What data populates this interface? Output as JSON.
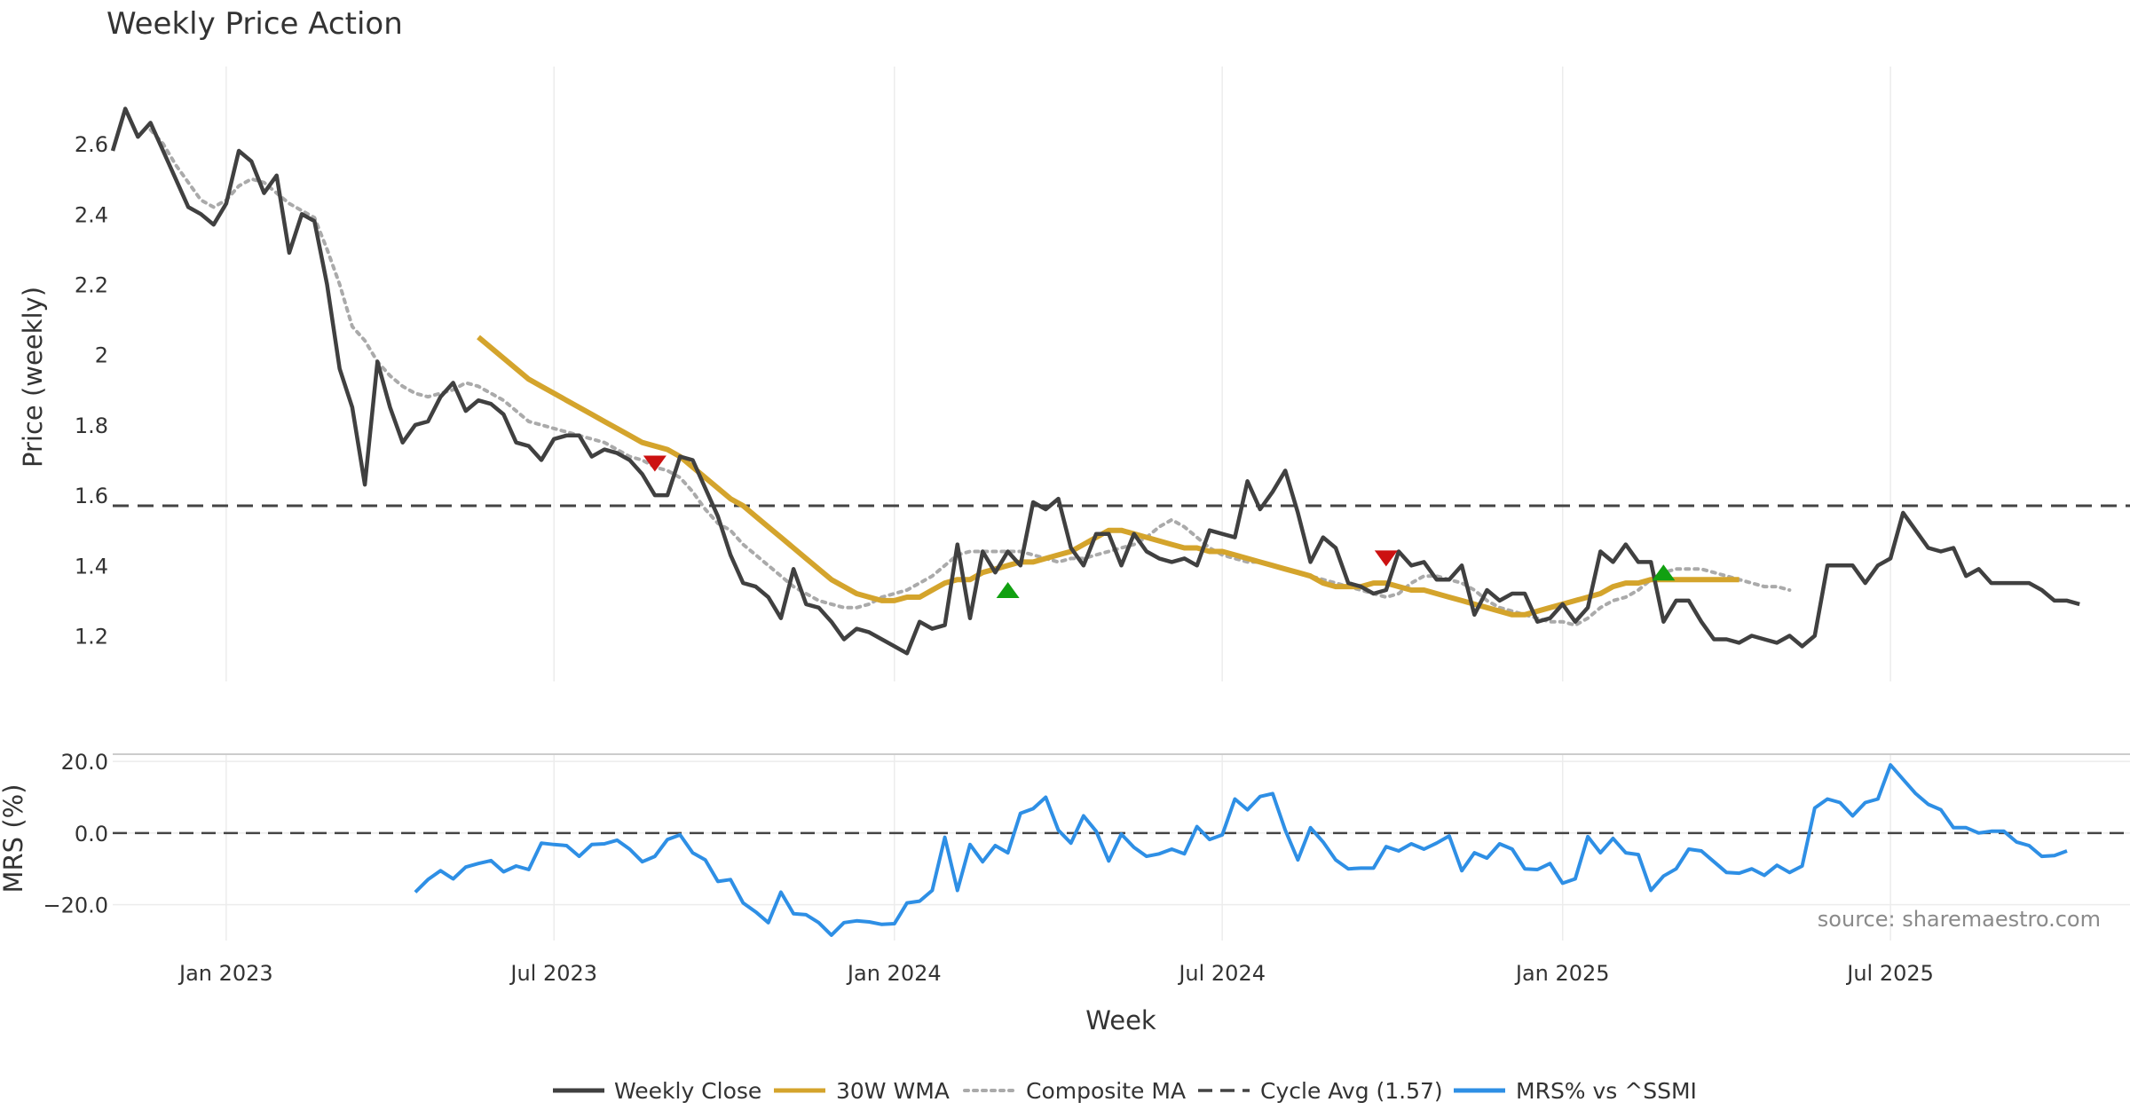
{
  "chart_data": {
    "type": "line",
    "title": "Weekly Price Action",
    "xlabel": "Week",
    "x_tick_labels": [
      "Jan 2023",
      "Jul 2023",
      "Jan 2024",
      "Jul 2024",
      "Jan 2025",
      "Jul 2025"
    ],
    "x_range_week_index": [
      0,
      160
    ],
    "x_tick_week_index": [
      9,
      35,
      62,
      88,
      115,
      141
    ],
    "price_panel": {
      "ylabel": "Price (weekly)",
      "ylim": [
        1.07,
        2.82
      ],
      "y_ticks": [
        1.2,
        1.4,
        1.6,
        1.8,
        2.0,
        2.2,
        2.4,
        2.6
      ],
      "y_tick_labels": [
        "1.2",
        "1.4",
        "1.6",
        "1.8",
        "2",
        "2.2",
        "2.4",
        "2.6"
      ]
    },
    "mrs_panel": {
      "ylabel": "MRS (%)",
      "ylim": [
        -30,
        22
      ],
      "y_ticks": [
        20,
        0,
        -20
      ],
      "y_tick_labels": [
        "20.0",
        "0.0",
        "−20.0"
      ]
    },
    "series": [
      {
        "name": "Weekly Close",
        "color": "#404040",
        "start_week": 0,
        "values": [
          2.58,
          2.7,
          2.62,
          2.66,
          2.58,
          2.5,
          2.42,
          2.4,
          2.37,
          2.43,
          2.58,
          2.55,
          2.46,
          2.51,
          2.29,
          2.4,
          2.38,
          2.2,
          1.96,
          1.85,
          1.63,
          1.98,
          1.85,
          1.75,
          1.8,
          1.81,
          1.88,
          1.92,
          1.84,
          1.87,
          1.86,
          1.83,
          1.75,
          1.74,
          1.7,
          1.76,
          1.77,
          1.77,
          1.71,
          1.73,
          1.72,
          1.7,
          1.66,
          1.6,
          1.6,
          1.71,
          1.7,
          1.62,
          1.54,
          1.43,
          1.35,
          1.34,
          1.31,
          1.25,
          1.39,
          1.29,
          1.28,
          1.24,
          1.19,
          1.22,
          1.21,
          1.19,
          1.17,
          1.15,
          1.24,
          1.22,
          1.23,
          1.46,
          1.25,
          1.44,
          1.38,
          1.44,
          1.4,
          1.58,
          1.56,
          1.59,
          1.45,
          1.4,
          1.49,
          1.49,
          1.4,
          1.49,
          1.44,
          1.42,
          1.41,
          1.42,
          1.4,
          1.5,
          1.49,
          1.48,
          1.64,
          1.56,
          1.61,
          1.67,
          1.55,
          1.41,
          1.48,
          1.45,
          1.35,
          1.34,
          1.32,
          1.33,
          1.44,
          1.4,
          1.41,
          1.36,
          1.36,
          1.4,
          1.26,
          1.33,
          1.3,
          1.32,
          1.32,
          1.24,
          1.25,
          1.29,
          1.24,
          1.28,
          1.44,
          1.41,
          1.46,
          1.41,
          1.41,
          1.24,
          1.3,
          1.3,
          1.24,
          1.19,
          1.19,
          1.18,
          1.2,
          1.19,
          1.18,
          1.2,
          1.17,
          1.2,
          1.4,
          1.4,
          1.4,
          1.35,
          1.4,
          1.42,
          1.55,
          1.5,
          1.45,
          1.44,
          1.45,
          1.37,
          1.39,
          1.35,
          1.35,
          1.35,
          1.35,
          1.33,
          1.3,
          1.3,
          1.29
        ]
      },
      {
        "name": "30W WMA",
        "color": "#D4A42C",
        "start_week": 29,
        "values": [
          2.05,
          2.02,
          1.99,
          1.96,
          1.93,
          1.91,
          1.89,
          1.87,
          1.85,
          1.83,
          1.81,
          1.79,
          1.77,
          1.75,
          1.74,
          1.73,
          1.71,
          1.68,
          1.65,
          1.62,
          1.59,
          1.57,
          1.54,
          1.51,
          1.48,
          1.45,
          1.42,
          1.39,
          1.36,
          1.34,
          1.32,
          1.31,
          1.3,
          1.3,
          1.31,
          1.31,
          1.33,
          1.35,
          1.36,
          1.36,
          1.38,
          1.39,
          1.4,
          1.41,
          1.41,
          1.42,
          1.43,
          1.44,
          1.46,
          1.48,
          1.5,
          1.5,
          1.49,
          1.48,
          1.47,
          1.46,
          1.45,
          1.45,
          1.44,
          1.44,
          1.43,
          1.42,
          1.41,
          1.4,
          1.39,
          1.38,
          1.37,
          1.35,
          1.34,
          1.34,
          1.34,
          1.35,
          1.35,
          1.34,
          1.33,
          1.33,
          1.32,
          1.31,
          1.3,
          1.29,
          1.28,
          1.27,
          1.26,
          1.26,
          1.27,
          1.28,
          1.29,
          1.3,
          1.31,
          1.32,
          1.34,
          1.35,
          1.35,
          1.36,
          1.36,
          1.36,
          1.36,
          1.36,
          1.36,
          1.36,
          1.36
        ]
      },
      {
        "name": "Composite MA",
        "color": "#AAAAAA",
        "start_week": 3,
        "values": [
          2.64,
          2.6,
          2.54,
          2.49,
          2.44,
          2.42,
          2.44,
          2.48,
          2.5,
          2.49,
          2.46,
          2.43,
          2.41,
          2.39,
          2.3,
          2.2,
          2.08,
          2.04,
          1.98,
          1.94,
          1.91,
          1.89,
          1.88,
          1.89,
          1.9,
          1.92,
          1.91,
          1.89,
          1.87,
          1.84,
          1.81,
          1.8,
          1.79,
          1.78,
          1.77,
          1.76,
          1.75,
          1.73,
          1.71,
          1.7,
          1.68,
          1.67,
          1.65,
          1.61,
          1.56,
          1.52,
          1.5,
          1.46,
          1.43,
          1.4,
          1.37,
          1.34,
          1.32,
          1.3,
          1.29,
          1.28,
          1.28,
          1.29,
          1.31,
          1.32,
          1.33,
          1.35,
          1.37,
          1.4,
          1.43,
          1.44,
          1.44,
          1.44,
          1.44,
          1.44,
          1.43,
          1.42,
          1.41,
          1.42,
          1.42,
          1.43,
          1.44,
          1.45,
          1.46,
          1.48,
          1.51,
          1.53,
          1.51,
          1.48,
          1.45,
          1.43,
          1.42,
          1.41,
          1.41,
          1.4,
          1.39,
          1.38,
          1.37,
          1.36,
          1.35,
          1.34,
          1.33,
          1.32,
          1.31,
          1.32,
          1.35,
          1.37,
          1.37,
          1.36,
          1.35,
          1.33,
          1.3,
          1.28,
          1.27,
          1.26,
          1.25,
          1.24,
          1.24,
          1.23,
          1.25,
          1.28,
          1.3,
          1.31,
          1.33,
          1.36,
          1.38,
          1.39,
          1.39,
          1.39,
          1.38,
          1.37,
          1.36,
          1.35,
          1.34,
          1.34,
          1.33
        ]
      },
      {
        "name": "MRS% vs ^SSMI",
        "color": "#2E8FE5",
        "start_week": 24,
        "values": [
          -16.5,
          -13,
          -10.5,
          -12.8,
          -9.5,
          -8.5,
          -7.7,
          -10.8,
          -9.2,
          -10.2,
          -2.8,
          -3.2,
          -3.5,
          -6.5,
          -3.2,
          -3.0,
          -2.0,
          -4.5,
          -8.0,
          -6.5,
          -1.8,
          -0.5,
          -5.5,
          -7.5,
          -13.5,
          -13.0,
          -19.5,
          -22.0,
          -25.0,
          -16.5,
          -22.5,
          -22.8,
          -25.0,
          -28.5,
          -25.0,
          -24.5,
          -24.8,
          -25.5,
          -25.3,
          -19.5,
          -19.0,
          -16.0,
          -1.2,
          -16.0,
          -3.2,
          -8.0,
          -3.5,
          -5.5,
          5.5,
          6.8,
          10.0,
          0.8,
          -2.8,
          4.8,
          0.5,
          -7.8,
          -0.3,
          -4.0,
          -6.5,
          -5.8,
          -4.5,
          -5.8,
          1.8,
          -1.8,
          -0.5,
          9.5,
          6.5,
          10.2,
          11.0,
          0.8,
          -7.5,
          1.5,
          -2.5,
          -7.5,
          -10.0,
          -9.8,
          -9.8,
          -3.8,
          -5.0,
          -3.0,
          -4.5,
          -2.8,
          -0.8,
          -10.5,
          -5.5,
          -7.0,
          -3.0,
          -4.5,
          -10.0,
          -10.2,
          -8.5,
          -14.0,
          -12.8,
          -1.0,
          -5.5,
          -1.5,
          -5.5,
          -6.0,
          -16.0,
          -12.0,
          -10.0,
          -4.5,
          -5.0,
          -8.0,
          -11.0,
          -11.2,
          -10.0,
          -11.8,
          -9.0,
          -11.0,
          -9.2,
          7.0,
          9.5,
          8.5,
          4.8,
          8.5,
          9.5,
          19.0,
          15.0,
          11.0,
          8.0,
          6.5,
          1.5,
          1.5,
          0.0,
          0.5,
          0.5,
          -2.5,
          -3.5,
          -6.5,
          -6.3,
          -5.0
        ]
      }
    ],
    "cycle_average": {
      "name": "Cycle Avg (1.57)",
      "value": 1.57,
      "color": "#444444"
    },
    "signals": [
      {
        "type": "sell",
        "week": 43,
        "price": 1.69,
        "color": "#CC1111"
      },
      {
        "type": "buy",
        "week": 71,
        "price": 1.33,
        "color": "#11A011"
      },
      {
        "type": "sell",
        "week": 101,
        "price": 1.42,
        "color": "#CC1111"
      },
      {
        "type": "buy",
        "week": 123,
        "price": 1.38,
        "color": "#11A011"
      }
    ],
    "legend": {
      "position": "bottom-center",
      "entries": [
        {
          "label": "Weekly Close",
          "style": "solid",
          "color": "#404040"
        },
        {
          "label": "30W WMA",
          "style": "solid",
          "color": "#D4A42C"
        },
        {
          "label": "Composite MA",
          "style": "dotted",
          "color": "#AAAAAA"
        },
        {
          "label": "Cycle Avg (1.57)",
          "style": "dashed",
          "color": "#444444"
        },
        {
          "label": "MRS% vs ^SSMI",
          "style": "solid",
          "color": "#2E8FE5"
        }
      ]
    },
    "annotation": "source: sharemaestro.com",
    "grid": true
  }
}
